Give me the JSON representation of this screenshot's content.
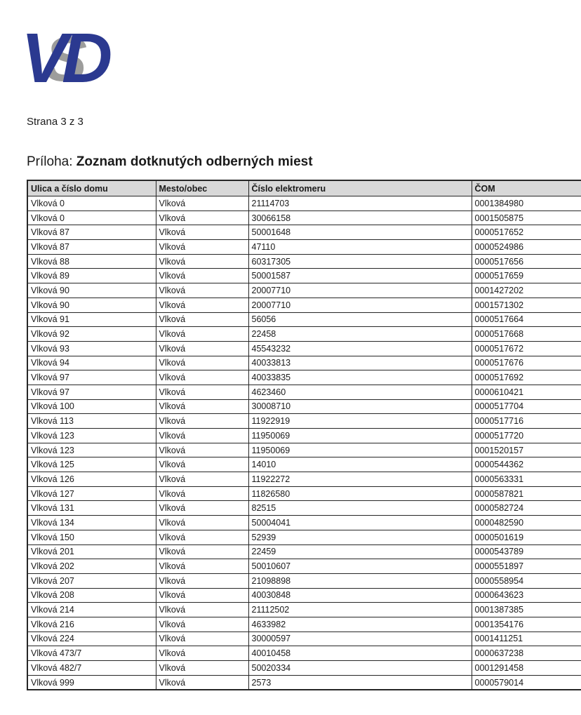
{
  "page": {
    "logo": {
      "letters": [
        "V",
        "S",
        "D"
      ],
      "blue": "#2b3990",
      "gray": "#9d9d9c"
    },
    "page_indicator": "Strana 3 z 3",
    "title_prefix": "Príloha:",
    "title_bold": "Zoznam dotknutých odberných miest"
  },
  "table": {
    "header_bg": "#d8d8d8",
    "columns": [
      "Ulica a číslo domu",
      "Mesto/obec",
      "Číslo elektromeru",
      "ČOM"
    ],
    "rows": [
      [
        "Vlková 0",
        "Vlková",
        "21114703",
        "0001384980"
      ],
      [
        "Vlková 0",
        "Vlková",
        "30066158",
        "0001505875"
      ],
      [
        "Vlková 87",
        "Vlková",
        "50001648",
        "0000517652"
      ],
      [
        "Vlková 87",
        "Vlková",
        "47110",
        "0000524986"
      ],
      [
        "Vlková 88",
        "Vlková",
        "60317305",
        "0000517656"
      ],
      [
        "Vlková 89",
        "Vlková",
        "50001587",
        "0000517659"
      ],
      [
        "Vlková 90",
        "Vlková",
        "20007710",
        "0001427202"
      ],
      [
        "Vlková 90",
        "Vlková",
        "20007710",
        "0001571302"
      ],
      [
        "Vlková 91",
        "Vlková",
        "56056",
        "0000517664"
      ],
      [
        "Vlková 92",
        "Vlková",
        "22458",
        "0000517668"
      ],
      [
        "Vlková 93",
        "Vlková",
        "45543232",
        "0000517672"
      ],
      [
        "Vlková 94",
        "Vlková",
        "40033813",
        "0000517676"
      ],
      [
        "Vlková 97",
        "Vlková",
        "40033835",
        "0000517692"
      ],
      [
        "Vlková 97",
        "Vlková",
        "4623460",
        "0000610421"
      ],
      [
        "Vlková 100",
        "Vlková",
        "30008710",
        "0000517704"
      ],
      [
        "Vlková 113",
        "Vlková",
        "11922919",
        "0000517716"
      ],
      [
        "Vlková 123",
        "Vlková",
        "11950069",
        "0000517720"
      ],
      [
        "Vlková 123",
        "Vlková",
        "11950069",
        "0001520157"
      ],
      [
        "Vlková 125",
        "Vlková",
        "14010",
        "0000544362"
      ],
      [
        "Vlková 126",
        "Vlková",
        "11922272",
        "0000563331"
      ],
      [
        "Vlková 127",
        "Vlková",
        "11826580",
        "0000587821"
      ],
      [
        "Vlková 131",
        "Vlková",
        "82515",
        "0000582724"
      ],
      [
        "Vlková 134",
        "Vlková",
        "50004041",
        "0000482590"
      ],
      [
        "Vlková 150",
        "Vlková",
        "52939",
        "0000501619"
      ],
      [
        "Vlková 201",
        "Vlková",
        "22459",
        "0000543789"
      ],
      [
        "Vlková 202",
        "Vlková",
        "50010607",
        "0000551897"
      ],
      [
        "Vlková 207",
        "Vlková",
        "21098898",
        "0000558954"
      ],
      [
        "Vlková 208",
        "Vlková",
        "40030848",
        "0000643623"
      ],
      [
        "Vlková 214",
        "Vlková",
        "21112502",
        "0001387385"
      ],
      [
        "Vlková 216",
        "Vlková",
        "4633982",
        "0001354176"
      ],
      [
        "Vlková 224",
        "Vlková",
        "30000597",
        "0001411251"
      ],
      [
        "Vlková 473/7",
        "Vlková",
        "40010458",
        "0000637238"
      ],
      [
        "Vlková 482/7",
        "Vlková",
        "50020334",
        "0001291458"
      ],
      [
        "Vlková 999",
        "Vlková",
        "2573",
        "0000579014"
      ]
    ]
  }
}
